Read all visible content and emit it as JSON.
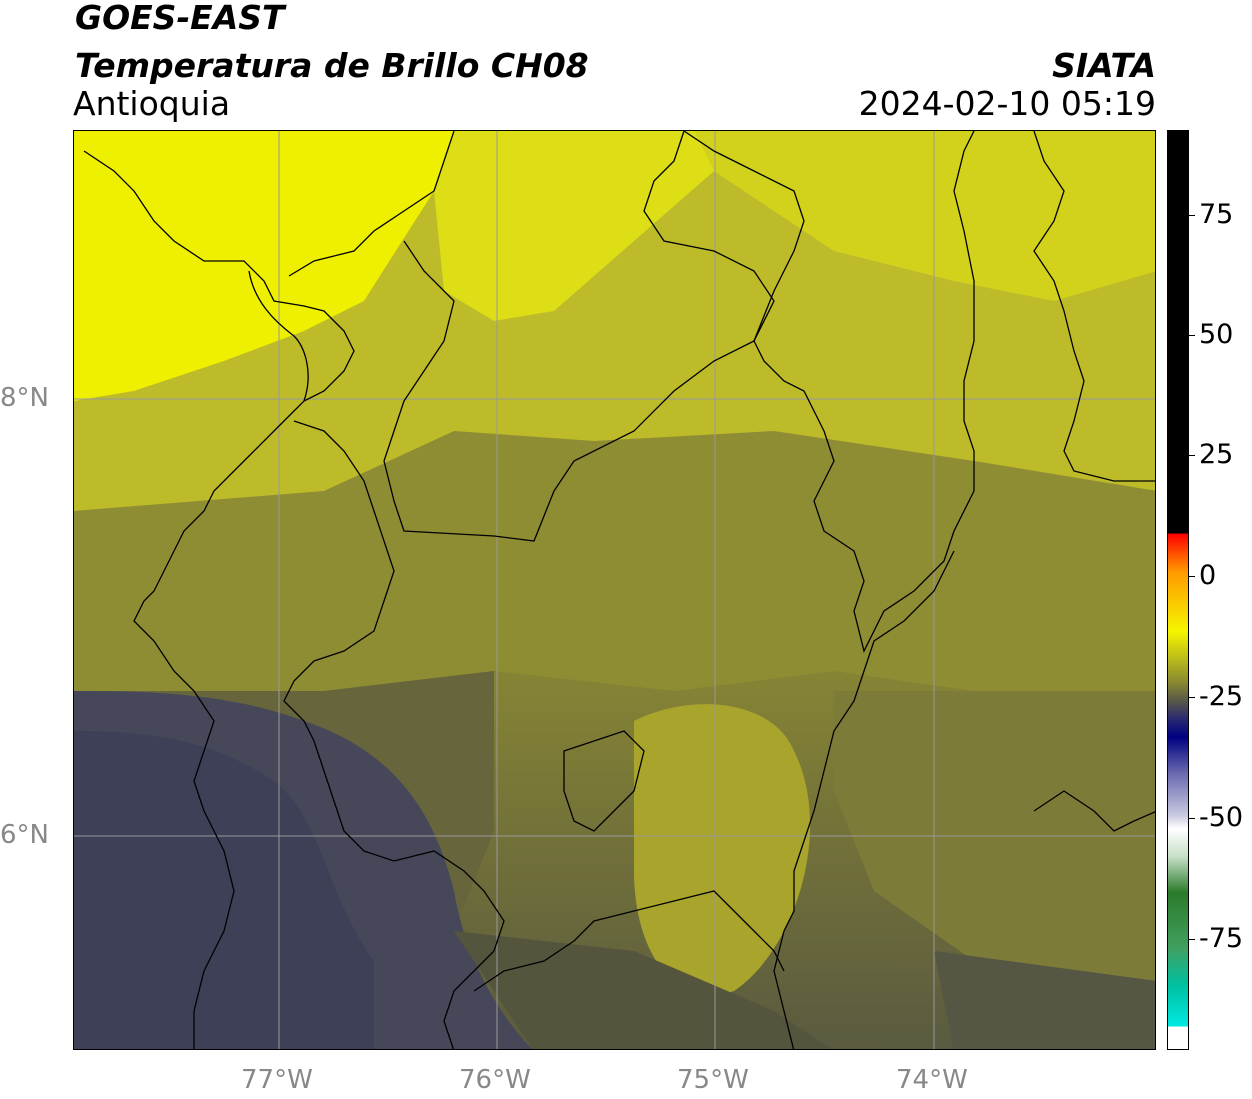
{
  "header": {
    "satellite": "GOES-EAST",
    "product": "Temperatura de Brillo CH08",
    "region": "Antioquia",
    "agency": "SIATA",
    "datetime": "2024-02-10 05:19"
  },
  "map": {
    "latitude_labels": [
      "8°N",
      "6°N"
    ],
    "longitude_labels": [
      "77°W",
      "76°W",
      "75°W",
      "74°W"
    ],
    "colors": {
      "warm_yellow": "#eef000",
      "mid_olive": "#9d9b30",
      "dark_olive": "#6f6f35",
      "cold_slate": "#444658",
      "border": "#000000",
      "grid": "#999999"
    }
  },
  "colorbar": {
    "tick_labels": [
      "75",
      "50",
      "25",
      "0",
      "-25",
      "-50",
      "-75"
    ],
    "colors": {
      "black": "#000000",
      "red": "#ff0000",
      "orange": "#ff9900",
      "yellow": "#f5f500",
      "olive": "#6a6a40",
      "navy": "#000080",
      "white": "#ffffff",
      "green": "#2a7a2a",
      "cyan": "#00e0e0"
    }
  }
}
